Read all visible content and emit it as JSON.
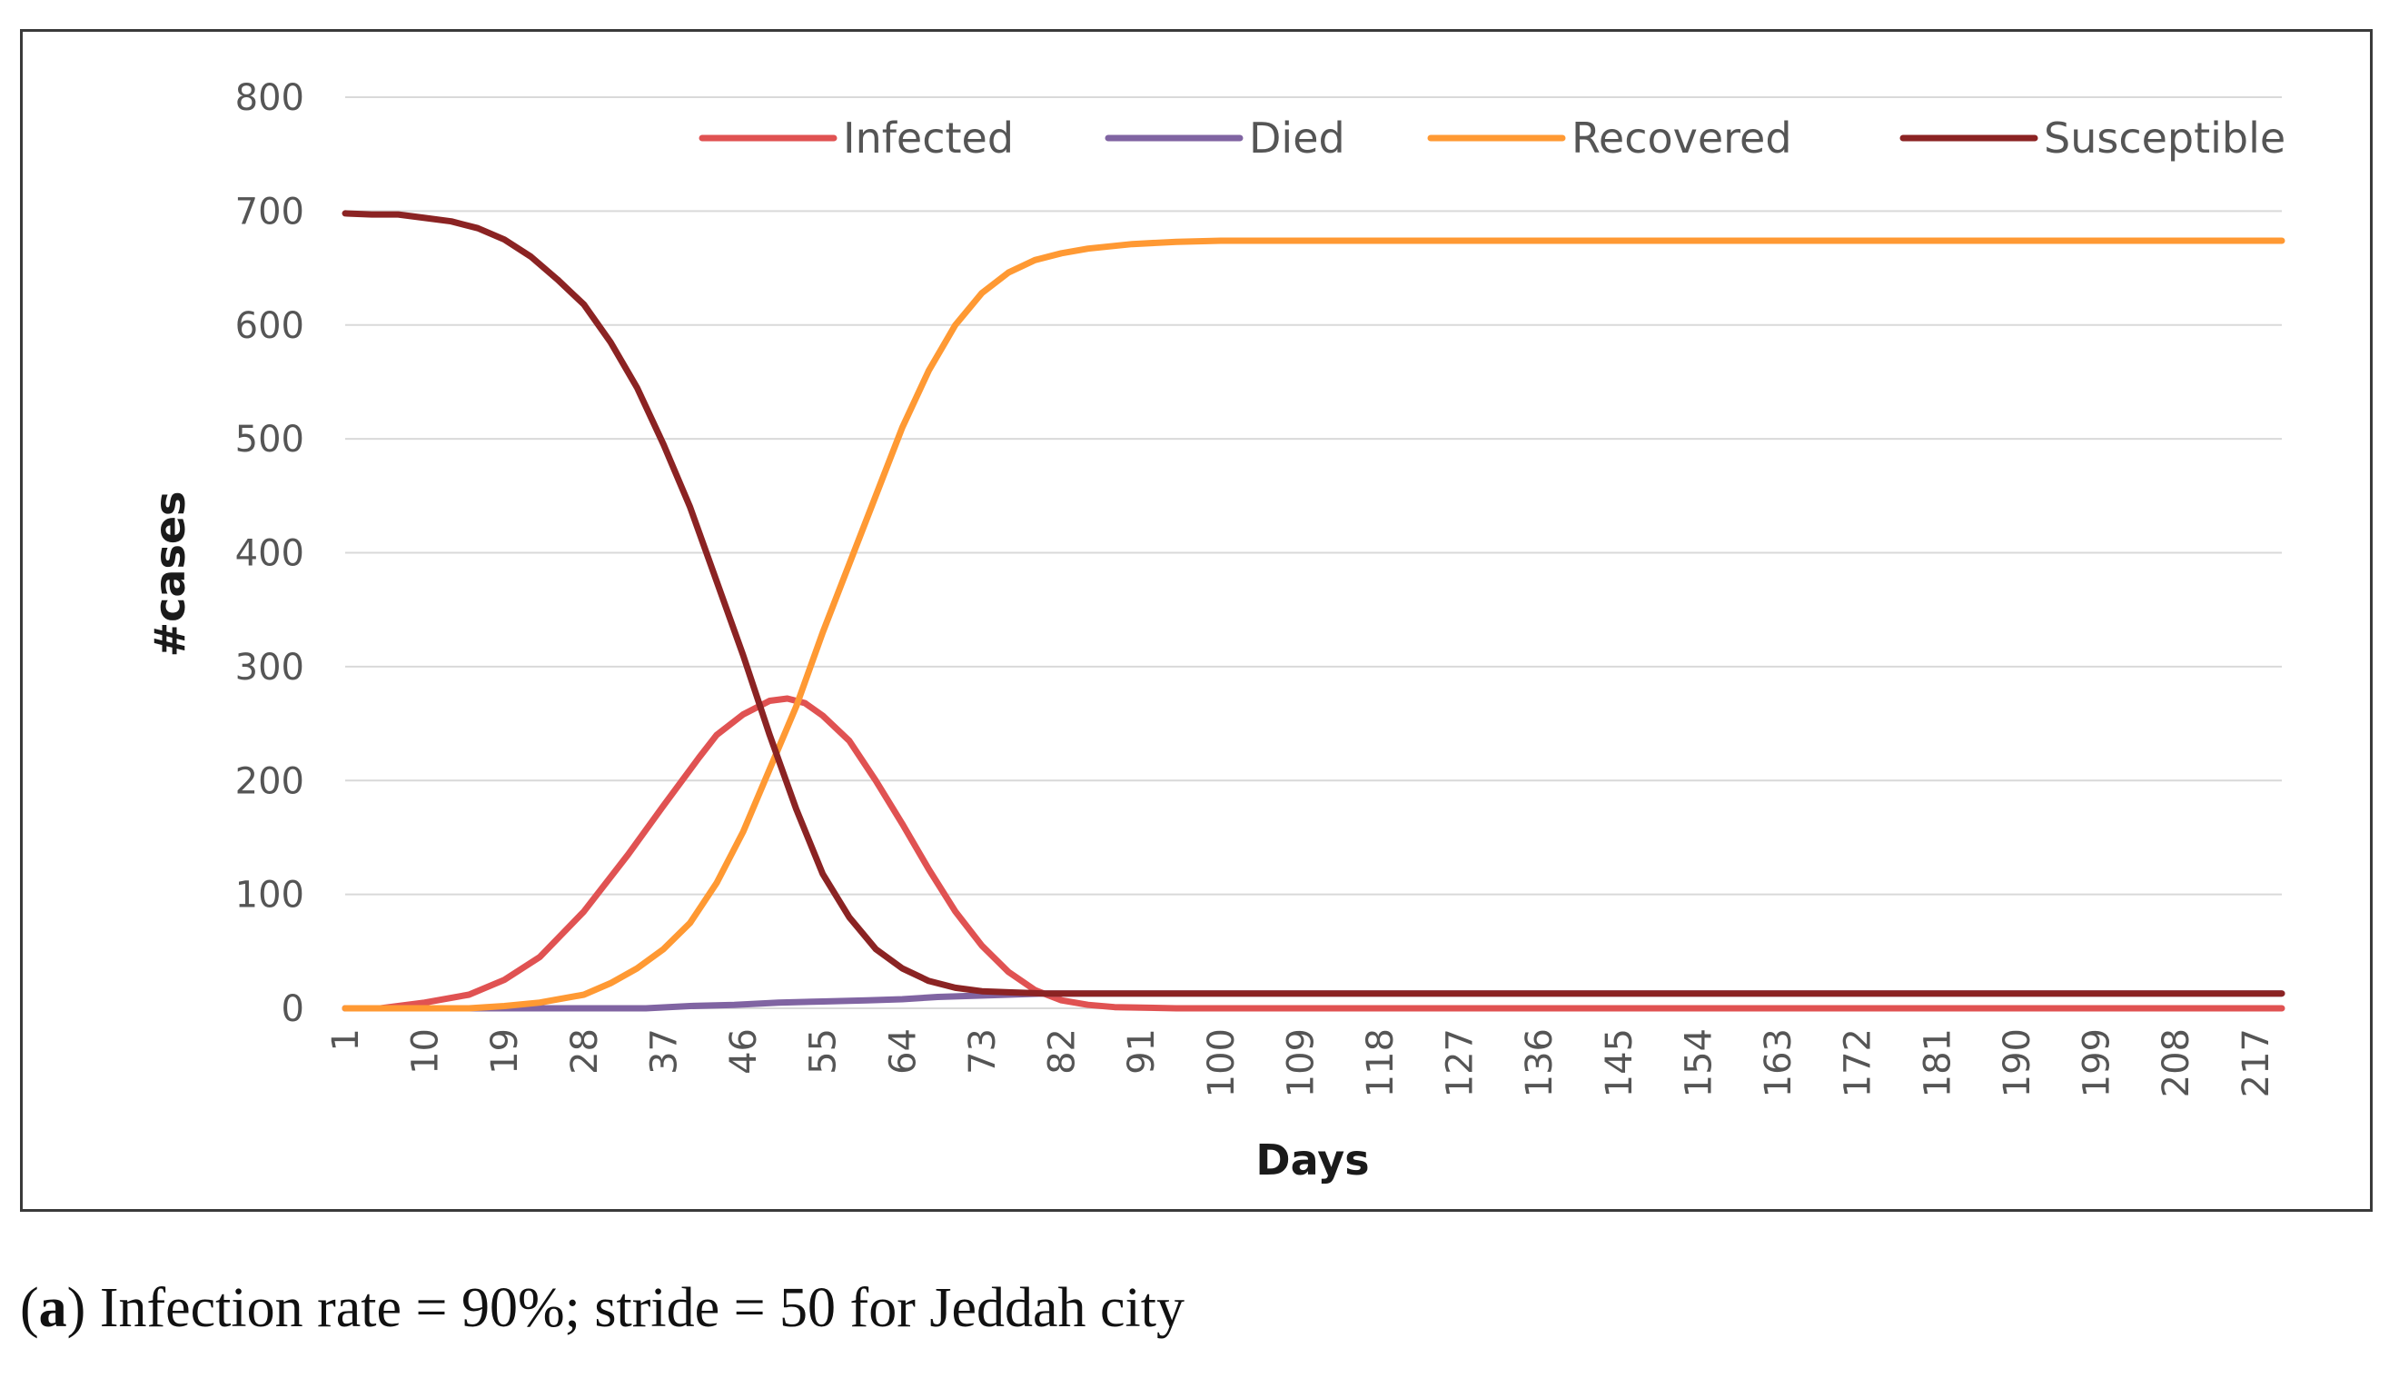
{
  "chart_data": {
    "type": "line",
    "title": "",
    "xlabel": "Days",
    "ylabel": "#cases",
    "ylim": [
      0,
      800
    ],
    "yticks": [
      0,
      100,
      200,
      300,
      400,
      500,
      600,
      700,
      800
    ],
    "xlim": [
      1,
      220
    ],
    "xtick_labels": [
      "1",
      "10",
      "19",
      "28",
      "37",
      "46",
      "55",
      "64",
      "73",
      "82",
      "91",
      "100",
      "109",
      "118",
      "127",
      "136",
      "145",
      "154",
      "163",
      "172",
      "181",
      "190",
      "199",
      "208",
      "217"
    ],
    "grid": true,
    "legend_position": "top-right",
    "series": [
      {
        "name": "Infected",
        "color": "#e05252",
        "points": [
          [
            1,
            0
          ],
          [
            5,
            0
          ],
          [
            10,
            5
          ],
          [
            15,
            12
          ],
          [
            19,
            25
          ],
          [
            23,
            45
          ],
          [
            28,
            85
          ],
          [
            33,
            135
          ],
          [
            37,
            178
          ],
          [
            41,
            220
          ],
          [
            43,
            240
          ],
          [
            46,
            258
          ],
          [
            49,
            270
          ],
          [
            51,
            272
          ],
          [
            53,
            268
          ],
          [
            55,
            257
          ],
          [
            58,
            235
          ],
          [
            61,
            200
          ],
          [
            64,
            162
          ],
          [
            67,
            122
          ],
          [
            70,
            85
          ],
          [
            73,
            55
          ],
          [
            76,
            32
          ],
          [
            79,
            16
          ],
          [
            82,
            7
          ],
          [
            85,
            3
          ],
          [
            88,
            1
          ],
          [
            95,
            0
          ],
          [
            220,
            0
          ]
        ]
      },
      {
        "name": "Died",
        "color": "#8064a2",
        "points": [
          [
            1,
            0
          ],
          [
            25,
            0
          ],
          [
            35,
            0
          ],
          [
            40,
            2
          ],
          [
            45,
            3
          ],
          [
            50,
            5
          ],
          [
            55,
            6
          ],
          [
            60,
            7
          ],
          [
            64,
            8
          ],
          [
            68,
            10
          ],
          [
            72,
            11
          ],
          [
            76,
            12
          ],
          [
            80,
            13
          ],
          [
            220,
            13
          ]
        ]
      },
      {
        "name": "Recovered",
        "color": "#ff9933",
        "points": [
          [
            1,
            0
          ],
          [
            10,
            0
          ],
          [
            15,
            0
          ],
          [
            19,
            2
          ],
          [
            23,
            5
          ],
          [
            28,
            12
          ],
          [
            31,
            22
          ],
          [
            34,
            35
          ],
          [
            37,
            52
          ],
          [
            40,
            75
          ],
          [
            43,
            110
          ],
          [
            46,
            155
          ],
          [
            49,
            210
          ],
          [
            52,
            265
          ],
          [
            55,
            330
          ],
          [
            58,
            390
          ],
          [
            61,
            450
          ],
          [
            64,
            510
          ],
          [
            67,
            560
          ],
          [
            70,
            600
          ],
          [
            73,
            628
          ],
          [
            76,
            646
          ],
          [
            79,
            657
          ],
          [
            82,
            663
          ],
          [
            85,
            667
          ],
          [
            90,
            671
          ],
          [
            95,
            673
          ],
          [
            100,
            674
          ],
          [
            220,
            674
          ]
        ]
      },
      {
        "name": "Susceptible",
        "color": "#8b2323",
        "points": [
          [
            1,
            698
          ],
          [
            4,
            697
          ],
          [
            7,
            697
          ],
          [
            10,
            694
          ],
          [
            13,
            691
          ],
          [
            16,
            685
          ],
          [
            19,
            675
          ],
          [
            22,
            660
          ],
          [
            25,
            640
          ],
          [
            28,
            618
          ],
          [
            31,
            585
          ],
          [
            34,
            545
          ],
          [
            37,
            495
          ],
          [
            40,
            440
          ],
          [
            43,
            375
          ],
          [
            46,
            310
          ],
          [
            49,
            240
          ],
          [
            52,
            175
          ],
          [
            55,
            118
          ],
          [
            58,
            80
          ],
          [
            61,
            52
          ],
          [
            64,
            35
          ],
          [
            67,
            24
          ],
          [
            70,
            18
          ],
          [
            73,
            15
          ],
          [
            76,
            14
          ],
          [
            80,
            13
          ],
          [
            220,
            13
          ]
        ]
      }
    ]
  },
  "caption": {
    "label": "a",
    "text": " Infection rate = 90%; stride = 50 for Jeddah city"
  }
}
